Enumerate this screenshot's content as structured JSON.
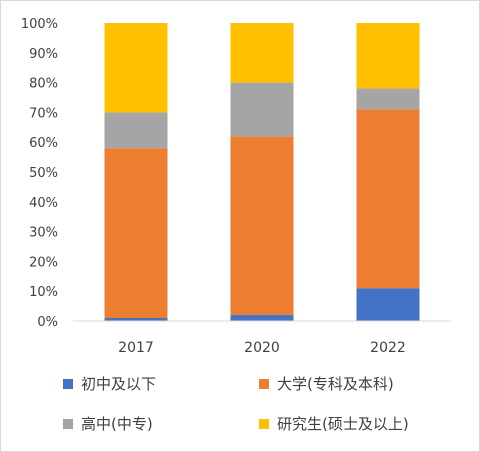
{
  "chart_data": {
    "type": "bar",
    "stacked": true,
    "percent": true,
    "categories": [
      "2017",
      "2020",
      "2022"
    ],
    "series": [
      {
        "name": "初中及以下",
        "color": "#4472C4",
        "values": [
          1,
          2,
          11
        ]
      },
      {
        "name": "大学(专科及本科)",
        "color": "#ED7D31",
        "values": [
          57,
          60,
          60
        ]
      },
      {
        "name": "高中(中专)",
        "color": "#A5A5A5",
        "values": [
          12,
          18,
          7
        ]
      },
      {
        "name": "研究生(硕士及以上)",
        "color": "#FFC000",
        "values": [
          30,
          20,
          22
        ]
      }
    ],
    "yticks": [
      "0%",
      "10%",
      "20%",
      "30%",
      "40%",
      "50%",
      "60%",
      "70%",
      "80%",
      "90%",
      "100%"
    ],
    "ylim": [
      0,
      100
    ],
    "grid": false,
    "legend_position": "bottom"
  }
}
